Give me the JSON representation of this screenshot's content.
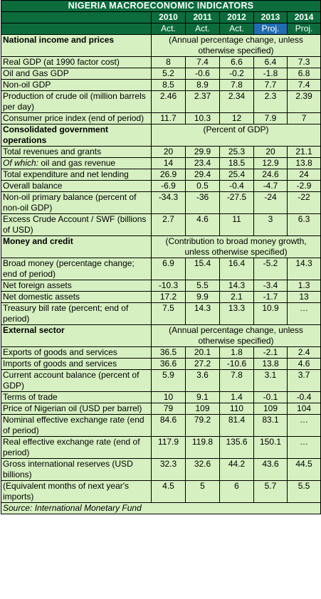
{
  "title": "NIGERIA MACROECONOMIC INDICATORS",
  "years": [
    "2010",
    "2011",
    "2012",
    "2013",
    "2014"
  ],
  "statuses": [
    "Act.",
    "Act.",
    "Act.",
    "Proj.",
    "Proj."
  ],
  "sections": [
    {
      "heading": "National income and prices",
      "note": "(Annual percentage change, unless otherwise specified)",
      "rows": [
        {
          "label": "Real GDP (at 1990 factor cost)",
          "values": [
            "8",
            "7.4",
            "6.6",
            "6.4",
            "7.3"
          ]
        },
        {
          "label": "Oil and Gas GDP",
          "values": [
            "5.2",
            "-0.6",
            "-0.2",
            "-1.8",
            "6.8"
          ]
        },
        {
          "label": "Non-oil GDP",
          "values": [
            "8.5",
            "8.9",
            "7.8",
            "7.7",
            "7.4"
          ]
        },
        {
          "label": "Production of crude oil (million barrels per day)",
          "values": [
            "2.46",
            "2.37",
            "2.34",
            "2.3",
            "2.39"
          ]
        },
        {
          "label": "Consumer price index (end of period)",
          "values": [
            "11.7",
            "10.3",
            "12",
            "7.9",
            "7"
          ]
        }
      ]
    },
    {
      "heading": "Consolidated government operations",
      "note": "(Percent of GDP)",
      "rows": [
        {
          "label": "Total revenues and grants",
          "values": [
            "20",
            "29.9",
            "25.3",
            "20",
            "21.1"
          ]
        },
        {
          "label_italic": "Of which:",
          "label": " oil and gas revenue",
          "values": [
            "14",
            "23.4",
            "18.5",
            "12.9",
            "13.8"
          ]
        },
        {
          "label": "Total expenditure and net lending",
          "values": [
            "26.9",
            "29.4",
            "25.4",
            "24.6",
            "24"
          ]
        },
        {
          "label": "Overall balance",
          "values": [
            "-6.9",
            "0.5",
            "-0.4",
            "-4.7",
            "-2.9"
          ]
        },
        {
          "label": "Non-oil primary balance (percent of non-oil GDP)",
          "values": [
            "-34.3",
            "-36",
            "-27.5",
            "-24",
            "-22"
          ],
          "top": true
        },
        {
          "label": "Excess Crude Account / SWF (billions of USD)",
          "values": [
            "2.7",
            "4.6",
            "11",
            "3",
            "6.3"
          ],
          "top": true
        }
      ]
    },
    {
      "heading": "Money and credit",
      "note": "(Contribution to broad money growth, unless otherwise specified)",
      "rows": [
        {
          "label": "Broad money (percentage change; end of period)",
          "values": [
            "6.9",
            "15.4",
            "16.4",
            "-5.2",
            "14.3"
          ],
          "top": true
        },
        {
          "label": "Net foreign assets",
          "values": [
            "-10.3",
            "5.5",
            "14.3",
            "-3.4",
            "1.3"
          ]
        },
        {
          "label": "Net domestic assets",
          "values": [
            "17.2",
            "9.9",
            "2.1",
            "-1.7",
            "13"
          ]
        },
        {
          "label": "Treasury bill rate (percent; end of period)",
          "values": [
            "7.5",
            "14.3",
            "13.3",
            "10.9",
            "…"
          ],
          "top": true
        }
      ]
    },
    {
      "heading": "External sector",
      "note": "(Annual percentage change, unless otherwise specified)",
      "rows": [
        {
          "label": "Exports of goods and services",
          "values": [
            "36.5",
            "20.1",
            "1.8",
            "-2.1",
            "2.4"
          ]
        },
        {
          "label": "Imports of goods and services",
          "values": [
            "36.6",
            "27.2",
            "-10.6",
            "13.8",
            "4.6"
          ]
        },
        {
          "label": "Current account balance (percent of GDP)",
          "values": [
            "5.9",
            "3.6",
            "7.8",
            "3.1",
            "3.7"
          ],
          "top": true
        },
        {
          "label": "Terms of trade",
          "values": [
            "10",
            "9.1",
            "1.4",
            "-0.1",
            "-0.4"
          ]
        },
        {
          "label": "Price of Nigerian oil (USD per barrel)",
          "values": [
            "79",
            "109",
            "110",
            "109",
            "104"
          ],
          "top": true
        },
        {
          "label": "Nominal effective exchange rate (end of period)",
          "values": [
            "84.6",
            "79.2",
            "81.4",
            "83.1",
            "…"
          ],
          "top": true
        },
        {
          "label": "Real effective exchange rate (end of period)",
          "values": [
            "117.9",
            "119.8",
            "135.6",
            "150.1",
            "…"
          ],
          "top": true
        },
        {
          "label": "Gross international reserves (USD billions)",
          "values": [
            "32.3",
            "32.6",
            "44.2",
            "43.6",
            "44.5"
          ],
          "top": true
        },
        {
          "label": "(Equivalent months of next year's imports)",
          "values": [
            "4.5",
            "5",
            "6",
            "5.7",
            "5.5"
          ],
          "top": true
        }
      ]
    }
  ],
  "source": "Source: International Monetary Fund"
}
